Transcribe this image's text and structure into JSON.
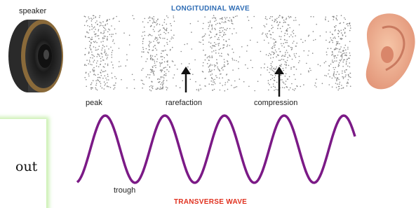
{
  "speaker_label": "speaker",
  "longitudinal_title": "LONGITUDINAL WAVE",
  "labels": {
    "peak": "peak",
    "rarefaction": "rarefaction",
    "compression": "compression",
    "trough": "trough"
  },
  "transverse_title": "TRANSVERSE WAVE",
  "side_text": "out"
}
